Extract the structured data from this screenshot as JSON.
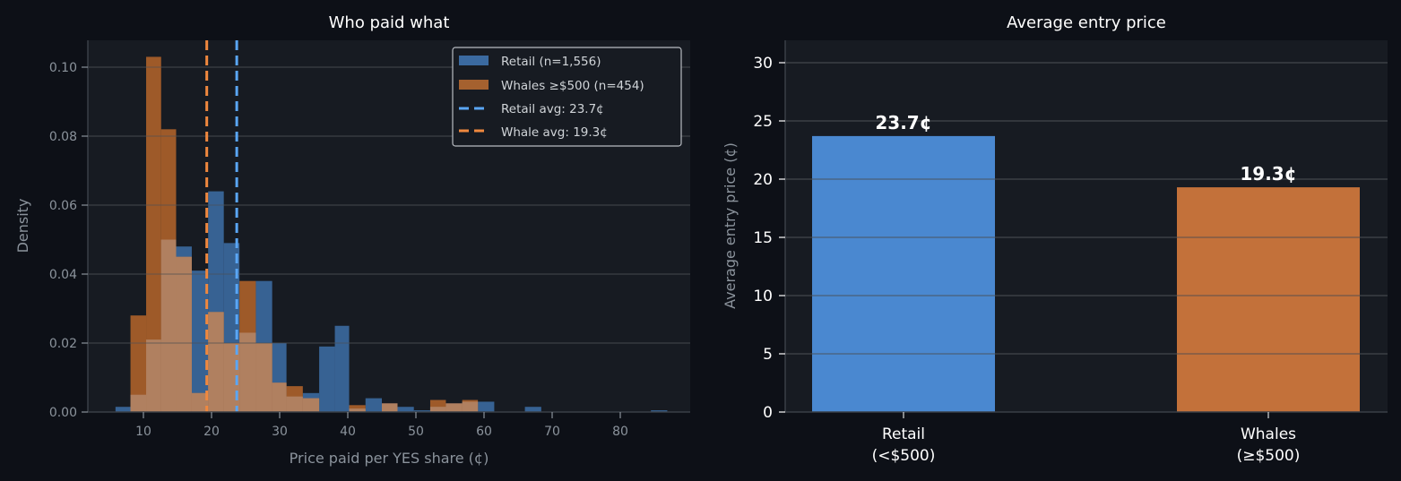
{
  "chart_data": [
    {
      "type": "bar",
      "subtype": "histogram",
      "title": "Who paid what",
      "xlabel": "Price paid per YES share (¢)",
      "ylabel": "Density",
      "xlim": [
        2,
        90
      ],
      "ylim": [
        0,
        0.108
      ],
      "xticks": [
        10,
        20,
        30,
        40,
        50,
        60,
        70,
        80
      ],
      "yticks": [
        "0.00",
        "0.02",
        "0.04",
        "0.06",
        "0.08",
        "0.10"
      ],
      "grid": true,
      "legend_position": "upper right",
      "bin_edges": [
        5.9,
        8.1,
        10.4,
        12.6,
        14.8,
        17.1,
        19.5,
        21.8,
        24.1,
        26.5,
        28.9,
        31.0,
        33.4,
        35.8,
        38.1,
        40.2,
        42.6,
        45.0,
        47.3,
        49.7,
        52.1,
        54.4,
        56.8,
        59.1,
        61.5,
        63.8,
        66.0,
        68.4,
        84.5,
        86.9
      ],
      "series": [
        {
          "name": "Retail (n=1,556)",
          "color": "#3b6aa0",
          "values": [
            0.0015,
            0.005,
            0.021,
            0.05,
            0.048,
            0.041,
            0.064,
            0.049,
            0.023,
            0.038,
            0.02,
            0.0045,
            0.0055,
            0.019,
            0.025,
            0.001,
            0.004,
            0.0025,
            0.0015,
            0.0005,
            0.0015,
            0.0025,
            0.003,
            0.003,
            0.0,
            0.0,
            0.0015,
            0.0,
            0.0005
          ]
        },
        {
          "name": "Whales ≥$500 (n=454)",
          "color": "#c06a2c",
          "values": [
            0.0,
            0.028,
            0.103,
            0.082,
            0.045,
            0.0055,
            0.029,
            0.02,
            0.038,
            0.02,
            0.0085,
            0.0075,
            0.004,
            0.0,
            0.0,
            0.002,
            0.0,
            0.0025,
            0.0,
            0.0,
            0.0035,
            0.0025,
            0.0035,
            0.0,
            0.0,
            0.0,
            0.0,
            0.0,
            0.0
          ]
        }
      ],
      "reference_lines": [
        {
          "name": "Retail avg: 23.7¢",
          "x": 23.7,
          "color": "#5aa6f5",
          "style": "dashed"
        },
        {
          "name": "Whale avg: 19.3¢",
          "x": 19.3,
          "color": "#f0883e",
          "style": "dashed"
        }
      ]
    },
    {
      "type": "bar",
      "title": "Average entry price",
      "xlabel": "",
      "ylabel": "Average entry price (¢)",
      "ylim": [
        0,
        32
      ],
      "yticks": [
        0,
        5,
        10,
        15,
        20,
        25,
        30
      ],
      "grid": true,
      "categories": [
        "Retail\n(<$500)",
        "Whales\n(≥$500)"
      ],
      "values": [
        23.7,
        19.3
      ],
      "colors": [
        "#4a88d0",
        "#c3713a"
      ],
      "data_labels": [
        "23.7¢",
        "19.3¢"
      ]
    }
  ],
  "left": {
    "title": "Who paid what",
    "xlabel": "Price paid per YES share (¢)",
    "ylabel": "Density",
    "legend": [
      "Retail (n=1,556)",
      "Whales ≥$500 (n=454)",
      "Retail avg: 23.7¢",
      "Whale avg: 19.3¢"
    ]
  },
  "right": {
    "title": "Average entry price",
    "ylabel": "Average entry price (¢)",
    "cat1_line1": "Retail",
    "cat1_line2": "(<$500)",
    "cat2_line1": "Whales",
    "cat2_line2": "(≥$500)",
    "label1": "23.7¢",
    "label2": "19.3¢"
  }
}
